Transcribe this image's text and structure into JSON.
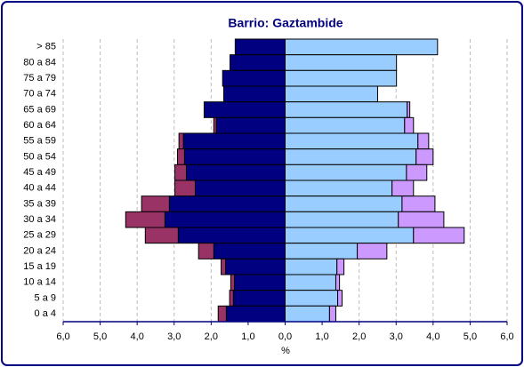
{
  "chart_data": {
    "type": "pyramid",
    "title": "Barrio: Gaztambide",
    "x_label": "%",
    "categories": [
      "> 85",
      "80 a 84",
      "75 a 79",
      "70 a 74",
      "65 a 69",
      "60 a 64",
      "55 a 59",
      "50 a 54",
      "45 a 49",
      "40 a 44",
      "35 a 39",
      "30 a 34",
      "25 a 29",
      "20 a 24",
      "15 a 19",
      "10 a 14",
      "5 a 9",
      "0 a 4"
    ],
    "series": [
      {
        "color": "#000080",
        "values": [
          -1.35,
          -1.49,
          -1.69,
          -1.66,
          -2.19,
          -1.86,
          -2.75,
          -2.72,
          -2.67,
          -2.43,
          -3.13,
          -3.25,
          -2.89,
          -1.93,
          -1.61,
          -1.37,
          -1.4,
          -1.59
        ]
      },
      {
        "color": "#993366",
        "values": [
          0,
          0,
          0,
          0,
          0,
          -0.07,
          -0.12,
          -0.19,
          -0.31,
          -0.55,
          -0.75,
          -1.06,
          -0.89,
          -0.41,
          -0.12,
          -0.1,
          -0.1,
          -0.22
        ]
      },
      {
        "color": "#99ccff",
        "values": [
          4.12,
          3.01,
          3.01,
          2.5,
          3.3,
          3.23,
          3.59,
          3.54,
          3.28,
          2.89,
          3.16,
          3.06,
          3.47,
          1.95,
          1.4,
          1.37,
          1.42,
          1.2
        ]
      },
      {
        "color": "#cc99ff",
        "values": [
          0,
          0,
          0,
          0,
          0.07,
          0.24,
          0.29,
          0.46,
          0.55,
          0.58,
          0.89,
          1.23,
          1.37,
          0.8,
          0.19,
          0.1,
          0.12,
          0.17
        ]
      }
    ],
    "xlim": [
      -6,
      6
    ],
    "xticks": [
      {
        "value": -6,
        "label": "6,0"
      },
      {
        "value": -5,
        "label": "5,0"
      },
      {
        "value": -4,
        "label": "4,0"
      },
      {
        "value": -3,
        "label": "3,0"
      },
      {
        "value": -2,
        "label": "2,0"
      },
      {
        "value": -1,
        "label": "1,0"
      },
      {
        "value": 0,
        "label": "0,0"
      },
      {
        "value": 1,
        "label": "1,0"
      },
      {
        "value": 2,
        "label": "2,0"
      },
      {
        "value": 3,
        "label": "3,0"
      },
      {
        "value": 4,
        "label": "4,0"
      },
      {
        "value": 5,
        "label": "5,0"
      },
      {
        "value": 6,
        "label": "6,0"
      }
    ],
    "grid": true
  }
}
